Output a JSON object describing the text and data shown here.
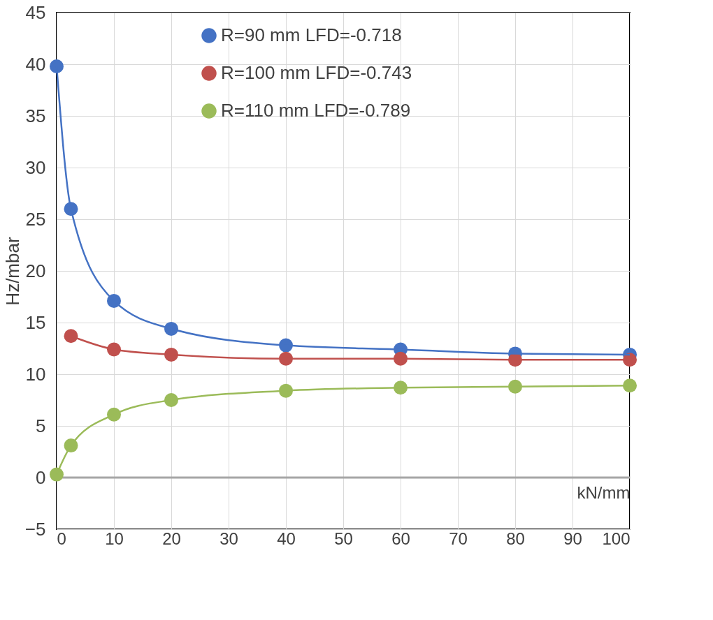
{
  "chart_data": {
    "type": "line",
    "xlabel": "kN/mm",
    "ylabel": "Hz/mbar",
    "xlim": [
      0,
      100
    ],
    "xticks": [
      0,
      10,
      20,
      30,
      40,
      50,
      60,
      70,
      80,
      90,
      100
    ],
    "ylim": [
      -5,
      45
    ],
    "yticks": [
      -5,
      0,
      5,
      10,
      15,
      20,
      25,
      30,
      35,
      40,
      45
    ],
    "grid": true,
    "legend": "top",
    "marker": "circle",
    "line_style": "solid",
    "series": [
      {
        "name": "R=90 mm  LFD=-0.718",
        "color": "#4472c4",
        "x": [
          0,
          2.5,
          10,
          20,
          40,
          60,
          80,
          100
        ],
        "values": [
          39.8,
          26.0,
          17.1,
          14.4,
          12.8,
          12.4,
          12.0,
          11.9
        ]
      },
      {
        "name": "R=100 mm LFD=-0.743",
        "color": "#c0504d",
        "x": [
          2.5,
          10,
          20,
          40,
          60,
          80,
          100
        ],
        "values": [
          13.7,
          12.4,
          11.9,
          11.5,
          11.5,
          11.4,
          11.4
        ]
      },
      {
        "name": "R=110 mm LFD=-0.789",
        "color": "#9bbb59",
        "x": [
          0,
          2.5,
          10,
          20,
          40,
          60,
          80,
          100
        ],
        "values": [
          0.3,
          3.1,
          6.1,
          7.5,
          8.4,
          8.7,
          8.8,
          8.9
        ]
      }
    ]
  }
}
